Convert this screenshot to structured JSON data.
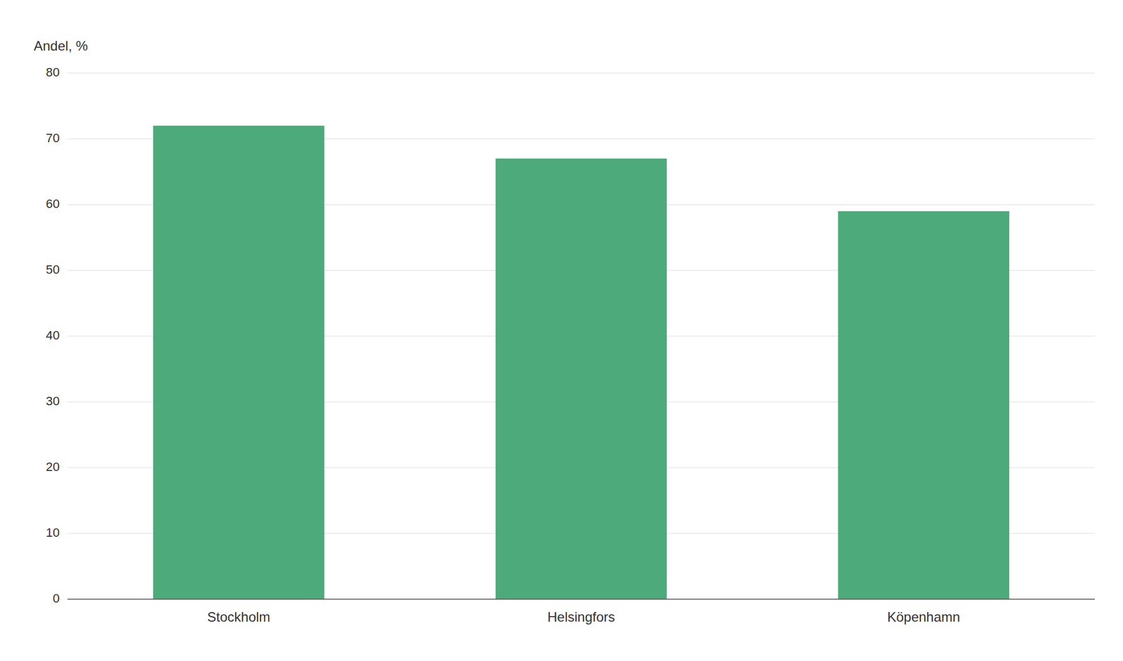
{
  "chart_data": {
    "type": "bar",
    "ylabel": "Andel, %",
    "categories": [
      "Stockholm",
      "Helsingfors",
      "Köpenhamn"
    ],
    "values": [
      72,
      67,
      59
    ],
    "color": "#4daa7a",
    "ylim": [
      0,
      80
    ],
    "yticks": [
      0,
      10,
      20,
      30,
      40,
      50,
      60,
      70,
      80
    ],
    "grid": true
  }
}
